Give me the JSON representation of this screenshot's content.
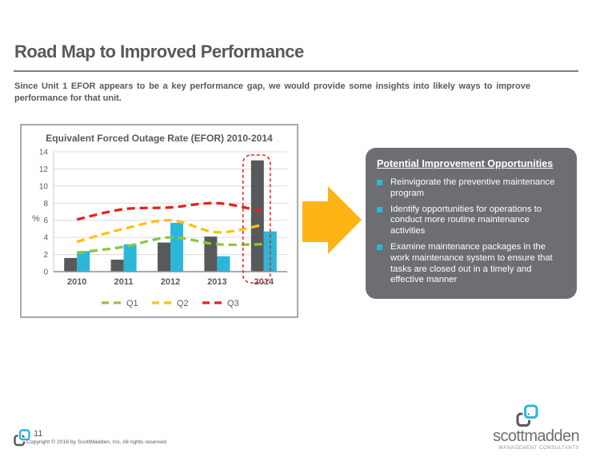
{
  "slide": {
    "title": "Road Map to Improved Performance",
    "subtitle": "Since Unit 1 EFOR appears to be a key performance gap, we would provide some insights into likely ways to improve performance for that unit."
  },
  "chart_data": {
    "type": "bar",
    "subtype": "combo-bar-line",
    "title": "Equivalent Forced Outage Rate (EFOR) 2010-2014",
    "xlabel": "",
    "ylabel": "%",
    "ylim": [
      0,
      14
    ],
    "ytick_step": 2,
    "grid": true,
    "categories": [
      "2010",
      "2011",
      "2012",
      "2013",
      "2014"
    ],
    "bar_series": [
      {
        "key": "dark-gray-bar",
        "color": "#58595B",
        "values": [
          1.6,
          1.4,
          3.4,
          4.1,
          13.0
        ]
      },
      {
        "key": "teal-bar",
        "color": "#2BB7D9",
        "values": [
          2.4,
          3.2,
          5.7,
          1.8,
          4.7
        ]
      }
    ],
    "line_series": [
      {
        "name": "Q1",
        "color": "#8CC63E",
        "values": [
          2.2,
          2.9,
          4.0,
          3.2,
          3.2
        ]
      },
      {
        "name": "Q2",
        "color": "#FFC10E",
        "values": [
          3.5,
          5.0,
          6.0,
          4.6,
          5.5
        ]
      },
      {
        "name": "Q3",
        "color": "#E8211D",
        "values": [
          6.1,
          7.3,
          7.5,
          8.0,
          7.0
        ]
      }
    ],
    "legend": {
      "position": "bottom",
      "entries": [
        "Q1",
        "Q2",
        "Q3"
      ]
    },
    "highlight": {
      "category": "2014",
      "style": "red-dashed-rounded-rect",
      "color": "#E8211D"
    }
  },
  "arrow": {
    "color": "#FDB515"
  },
  "panel": {
    "title": "Potential Improvement Opportunities",
    "bg_color": "#6D6E71",
    "bullet_color": "#2BB7D9",
    "bullets": [
      "Reinvigorate the preventive maintenance program",
      "Identify opportunities for operations to conduct more routine maintenance activities",
      "Examine maintenance packages in the work maintenance system to ensure that tasks are closed out in a timely and effective manner"
    ]
  },
  "footer": {
    "page_number": "11",
    "copyright": "Copyright © 2016 by ScottMadden, Inc. All rights reserved.",
    "logo_text": "scottmadden",
    "logo_tagline": "MANAGEMENT CONSULTANTS"
  }
}
